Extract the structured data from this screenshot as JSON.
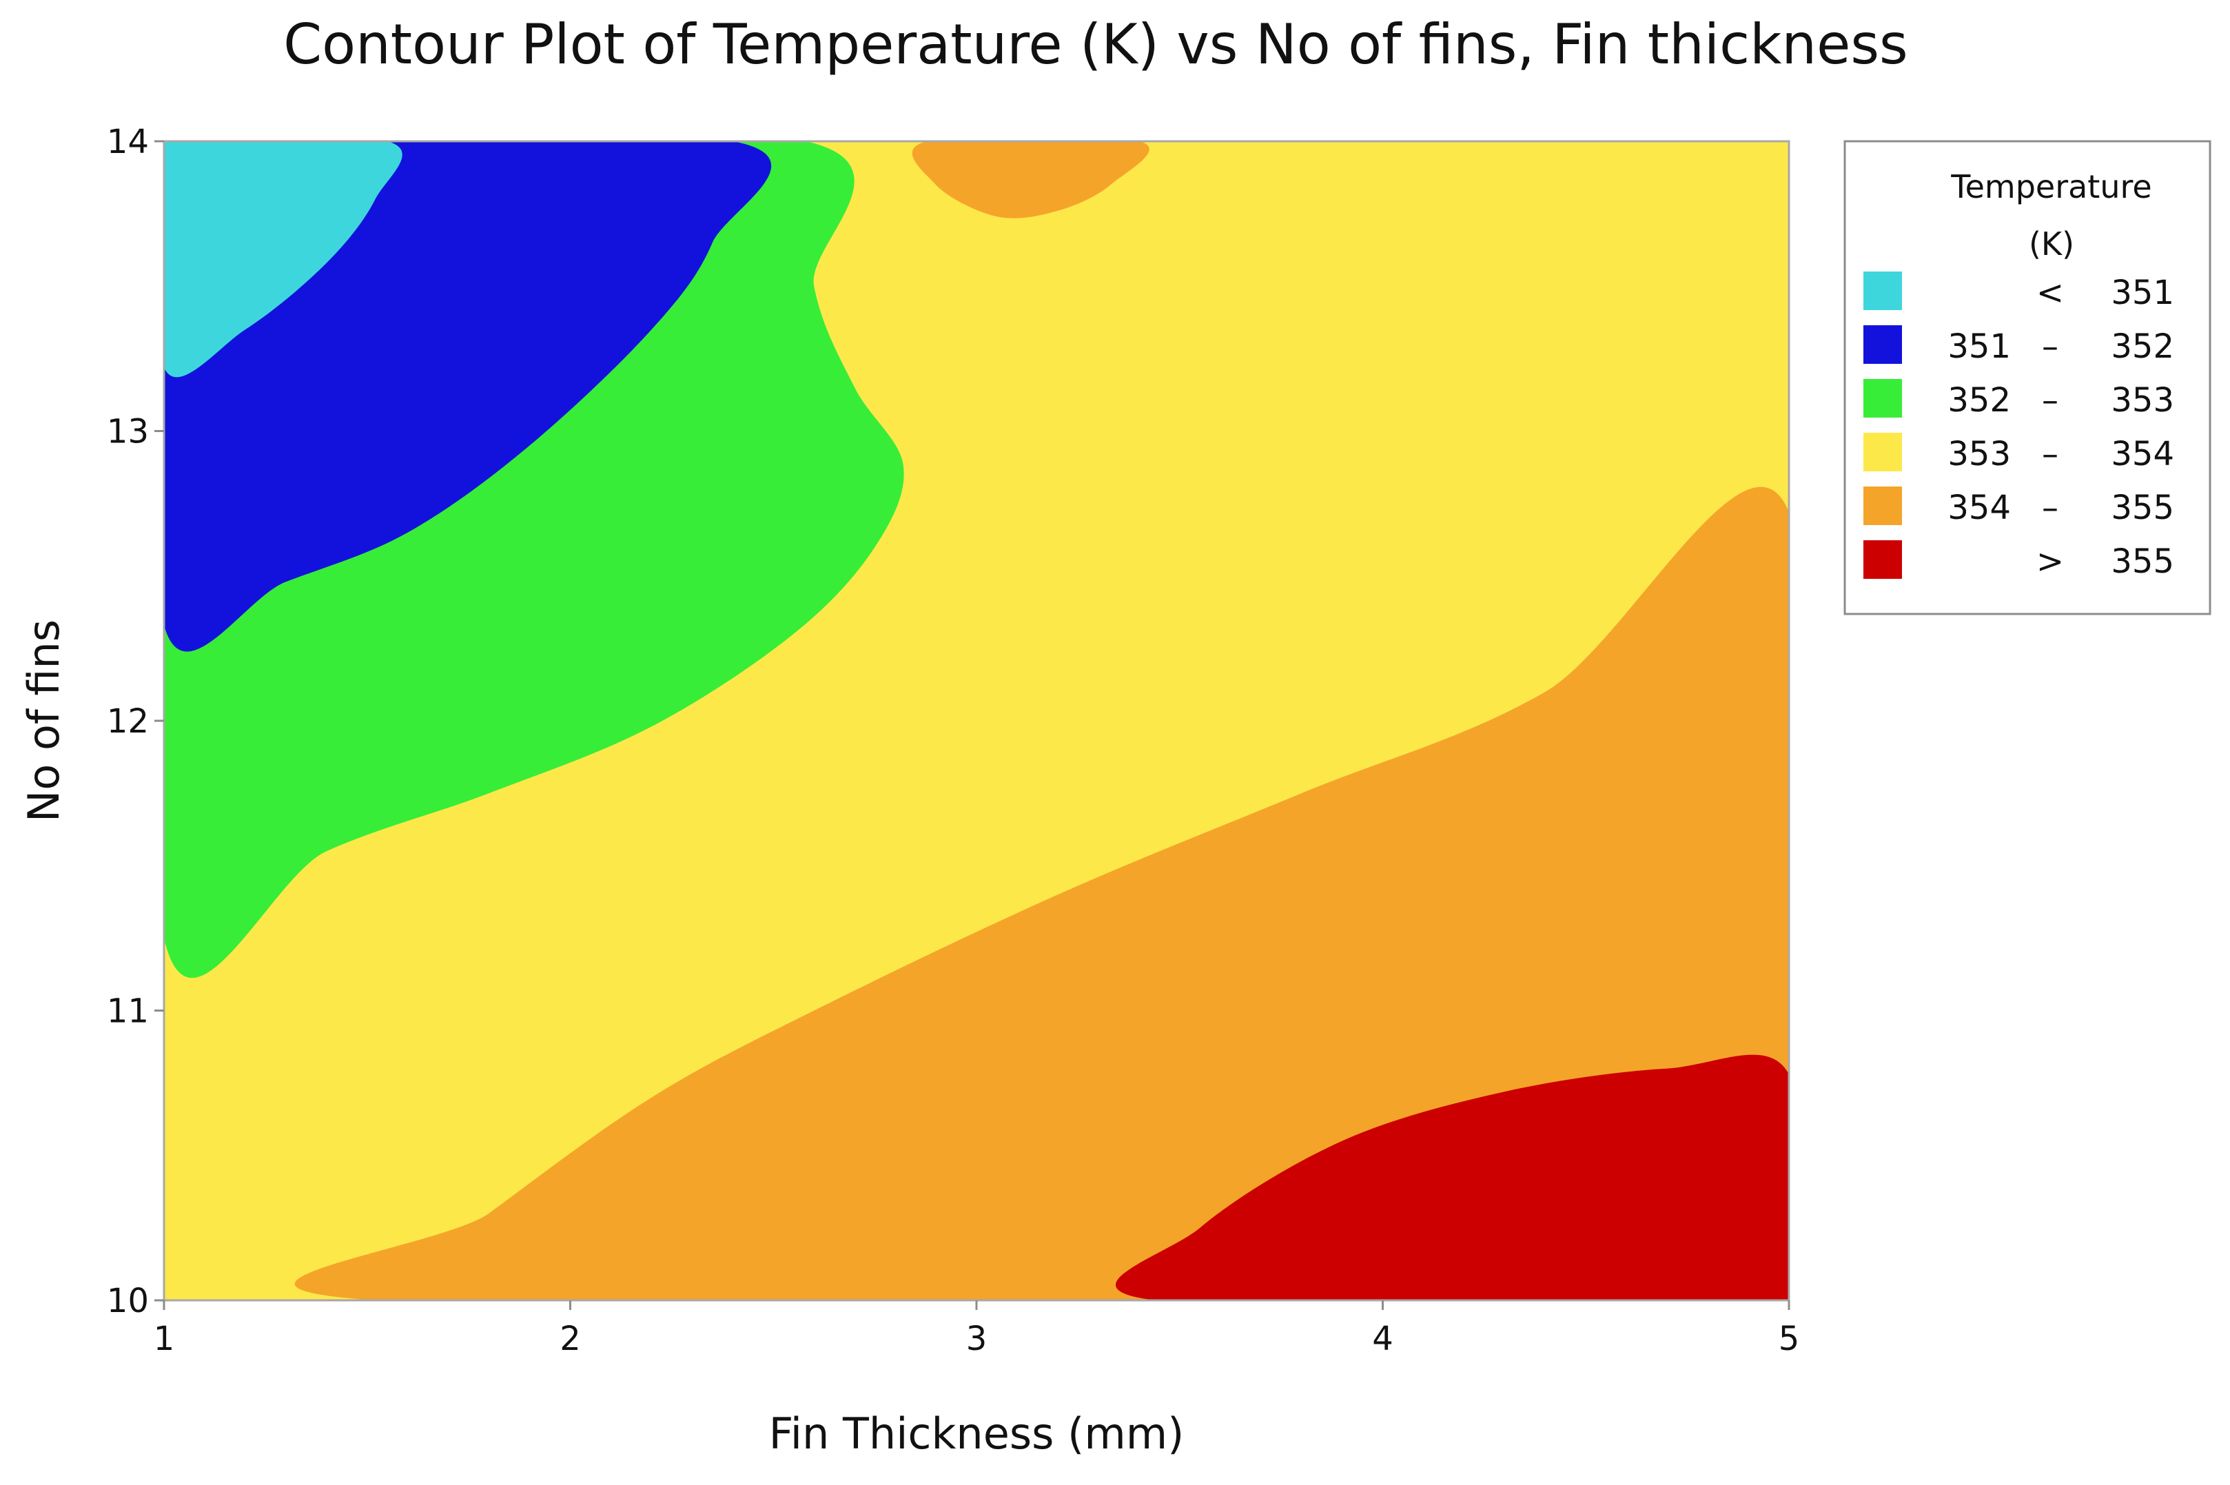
{
  "chart_data": {
    "type": "contour",
    "title": "Contour Plot of Temperature (K) vs No of fins, Fin thickness",
    "xlabel": "Fin Thickness (mm)",
    "ylabel": "No of fins",
    "xlim": [
      1,
      5
    ],
    "ylim": [
      10,
      14
    ],
    "x_ticks": [
      "1",
      "2",
      "3",
      "4",
      "5"
    ],
    "y_ticks": [
      "10",
      "11",
      "12",
      "13",
      "14"
    ],
    "grid": false,
    "legend_position": "right",
    "legend": {
      "title_line1": "Temperature",
      "title_line2": "(K)",
      "levels": [
        {
          "name": "< 351",
          "lo": "",
          "sep": "<",
          "hi": "351",
          "color": "#3dd6dd"
        },
        {
          "name": "351 – 352",
          "lo": "351",
          "sep": "–",
          "hi": "352",
          "color": "#1212dc"
        },
        {
          "name": "352 – 353",
          "lo": "352",
          "sep": "–",
          "hi": "353",
          "color": "#38ed38"
        },
        {
          "name": "353 – 354",
          "lo": "353",
          "sep": "–",
          "hi": "354",
          "color": "#fde84a"
        },
        {
          "name": "354 – 355",
          "lo": "354",
          "sep": "–",
          "hi": "355",
          "color": "#f5a42a"
        },
        {
          "name": "> 355",
          "lo": "",
          "sep": ">",
          "hi": "355",
          "color": "#cc0000"
        }
      ]
    },
    "regions": [
      {
        "level": 3,
        "points": [
          [
            1,
            10
          ],
          [
            5,
            10
          ],
          [
            5,
            14
          ],
          [
            1,
            14
          ]
        ]
      },
      {
        "level": 4,
        "points": [
          [
            1.52,
            10
          ],
          [
            1.8,
            10.3
          ],
          [
            2.2,
            10.7
          ],
          [
            2.6,
            11
          ],
          [
            3.2,
            11.4
          ],
          [
            3.8,
            11.75
          ],
          [
            4.4,
            12.1
          ],
          [
            5,
            12.72
          ],
          [
            5,
            10
          ]
        ]
      },
      {
        "level": 5,
        "points": [
          [
            3.44,
            10
          ],
          [
            3.55,
            10.25
          ],
          [
            3.9,
            10.55
          ],
          [
            4.3,
            10.72
          ],
          [
            4.7,
            10.8
          ],
          [
            5,
            10.78
          ],
          [
            5,
            10
          ]
        ]
      },
      {
        "level": 4,
        "points": [
          [
            2.88,
            14
          ],
          [
            2.9,
            13.85
          ],
          [
            3.05,
            13.74
          ],
          [
            3.2,
            13.76
          ],
          [
            3.33,
            13.85
          ],
          [
            3.4,
            14
          ]
        ]
      },
      {
        "level": 2,
        "points": [
          [
            1,
            11.25
          ],
          [
            1.4,
            11.55
          ],
          [
            1.8,
            11.75
          ],
          [
            2.2,
            11.98
          ],
          [
            2.55,
            12.3
          ],
          [
            2.75,
            12.6
          ],
          [
            2.82,
            12.88
          ],
          [
            2.7,
            13.15
          ],
          [
            2.6,
            13.5
          ],
          [
            2.58,
            14
          ],
          [
            1,
            14
          ]
        ]
      },
      {
        "level": 1,
        "points": [
          [
            1,
            12.33
          ],
          [
            1.3,
            12.48
          ],
          [
            1.6,
            12.65
          ],
          [
            1.9,
            12.95
          ],
          [
            2.2,
            13.35
          ],
          [
            2.35,
            13.65
          ],
          [
            2.4,
            14
          ],
          [
            1,
            14
          ]
        ]
      },
      {
        "level": 0,
        "points": [
          [
            1,
            13.22
          ],
          [
            1.2,
            13.35
          ],
          [
            1.4,
            13.58
          ],
          [
            1.52,
            13.8
          ],
          [
            1.55,
            14
          ],
          [
            1,
            14
          ]
        ]
      }
    ]
  }
}
